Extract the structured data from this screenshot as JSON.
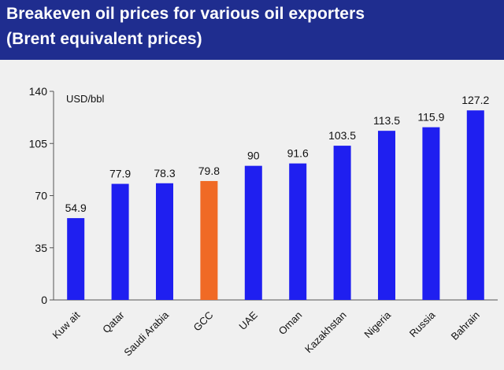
{
  "chart_data": {
    "type": "bar",
    "title": "Breakeven oil prices for various oil exporters",
    "subtitle": "(Brent equivalent prices)",
    "ylabel": "USD/bbl",
    "xlabel": "",
    "ylim": [
      0,
      140
    ],
    "yticks": [
      0,
      35,
      70,
      105,
      140
    ],
    "grid": false,
    "categories": [
      "Kuw ait",
      "Qatar",
      "Saudi Arabia",
      "GCC",
      "UAE",
      "Oman",
      "Kazakhstan",
      "Nigeria",
      "Russia",
      "Bahrain"
    ],
    "values": [
      54.9,
      77.9,
      78.3,
      79.8,
      90,
      91.6,
      103.5,
      113.5,
      115.9,
      127.2
    ],
    "value_labels": [
      "54.9",
      "77.9",
      "78.3",
      "79.8",
      "90",
      "91.6",
      "103.5",
      "113.5",
      "115.9",
      "127.2"
    ],
    "bar_colors": [
      "#1f1ff0",
      "#1f1ff0",
      "#1f1ff0",
      "#f06a25",
      "#1f1ff0",
      "#1f1ff0",
      "#1f1ff0",
      "#1f1ff0",
      "#1f1ff0",
      "#1f1ff0"
    ]
  }
}
